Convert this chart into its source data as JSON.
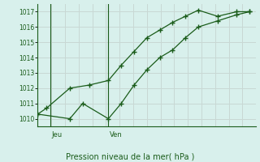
{
  "xlabel": "Pression niveau de la mer( hPa )",
  "background_color": "#d8f0ec",
  "grid_color": "#c8d8d4",
  "line_color": "#1a5c1a",
  "ylim": [
    1009.5,
    1017.5
  ],
  "yticks": [
    1010,
    1011,
    1012,
    1013,
    1014,
    1015,
    1016,
    1017
  ],
  "xmin": 0,
  "xmax": 17,
  "jeu_x": 1.0,
  "ven_x": 5.5,
  "line1_x": [
    0,
    0.7,
    2.5,
    4.0,
    5.5,
    6.5,
    7.5,
    8.5,
    9.5,
    10.5,
    11.5,
    12.5,
    14.0,
    15.5,
    16.5
  ],
  "line1_y": [
    1010.3,
    1010.7,
    1012.0,
    1012.2,
    1012.5,
    1013.5,
    1014.4,
    1015.3,
    1015.8,
    1016.3,
    1016.7,
    1017.1,
    1016.7,
    1017.0,
    1017.0
  ],
  "line2_x": [
    0,
    2.5,
    3.5,
    5.5,
    6.5,
    7.5,
    8.5,
    9.5,
    10.5,
    11.5,
    12.5,
    14.0,
    15.5,
    16.5
  ],
  "line2_y": [
    1010.3,
    1010.0,
    1011.0,
    1010.0,
    1011.0,
    1012.2,
    1013.2,
    1014.0,
    1014.5,
    1015.3,
    1016.0,
    1016.4,
    1016.8,
    1017.0
  ],
  "n_vgrid": 17,
  "marker_size": 3
}
